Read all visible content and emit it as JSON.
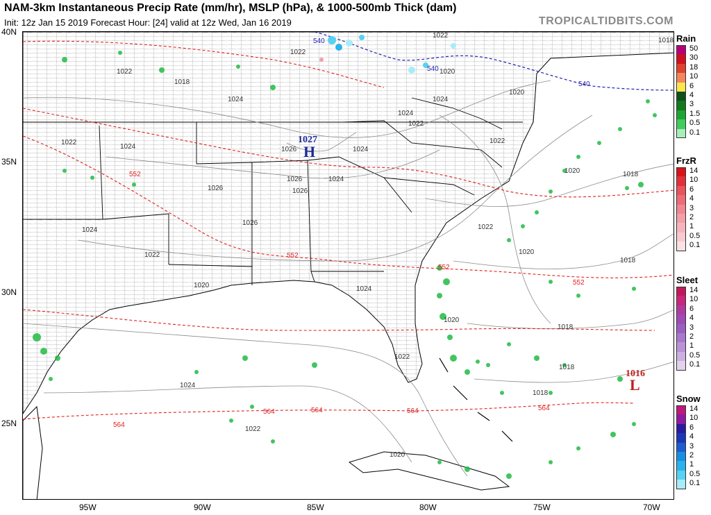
{
  "header": {
    "title": "NAM-3km Instantaneous Precip Rate (mm/hr), MSLP (hPa), & 1000-500mb Thick (dam)",
    "subtitle": "Init: 12z Jan 15 2019   Forecast Hour: [24]   valid at 12z Wed, Jan 16 2019",
    "brand": "TROPICALTIDBITS.COM"
  },
  "axes": {
    "lat_labels": [
      "40N",
      "35N",
      "30N",
      "25N"
    ],
    "lon_labels": [
      "95W",
      "90W",
      "85W",
      "80W",
      "75W",
      "70W"
    ]
  },
  "map": {
    "pressure_centers": [
      {
        "type": "H",
        "value": "1027",
        "color": "#1a2a9a"
      },
      {
        "type": "L",
        "value": "1016",
        "color": "#c0201e"
      }
    ],
    "isobar_labels": [
      "1022",
      "1022",
      "1020",
      "1018",
      "1018",
      "1022",
      "1024",
      "1024",
      "1020",
      "1024",
      "1022",
      "1022",
      "1024",
      "1026",
      "1024",
      "1022",
      "1026",
      "1026",
      "1020",
      "1024",
      "1026",
      "1022",
      "1026",
      "1018",
      "1020",
      "1024",
      "1020",
      "1018",
      "1022",
      "1024",
      "1024",
      "1022",
      "1018",
      "1018",
      "1020",
      "1022",
      "1020",
      "1018"
    ],
    "thickness_labels": [
      "540",
      "540",
      "540",
      "552",
      "552",
      "552",
      "552",
      "564",
      "564",
      "564",
      "564",
      "564"
    ],
    "colors": {
      "thickness": "#e02020",
      "thickness_540": "#2020b0",
      "isobar": "#888888",
      "border": "#000000",
      "county": "#aaaaaa",
      "rain": "#22bb44"
    }
  },
  "legends": [
    {
      "title": "Rain",
      "items": [
        {
          "label": "50",
          "color": "#b5007a"
        },
        {
          "label": "30",
          "color": "#d10f1e"
        },
        {
          "label": "18",
          "color": "#e0412f"
        },
        {
          "label": "10",
          "color": "#f2875c"
        },
        {
          "label": "6",
          "color": "#fbe64e"
        },
        {
          "label": "4",
          "color": "#0e4f1a"
        },
        {
          "label": "3",
          "color": "#14781e"
        },
        {
          "label": "1.5",
          "color": "#1da534"
        },
        {
          "label": "0.5",
          "color": "#41cc5e"
        },
        {
          "label": "0.1",
          "color": "#a8eebb"
        }
      ]
    },
    {
      "title": "FrzR",
      "items": [
        {
          "label": "14",
          "color": "#d8131a"
        },
        {
          "label": "10",
          "color": "#e2303a"
        },
        {
          "label": "6",
          "color": "#e9535a"
        },
        {
          "label": "4",
          "color": "#ee6c77"
        },
        {
          "label": "3",
          "color": "#f18792"
        },
        {
          "label": "2",
          "color": "#f49fa8"
        },
        {
          "label": "1",
          "color": "#f6b5bc"
        },
        {
          "label": "0.5",
          "color": "#f8cad0"
        },
        {
          "label": "0.1",
          "color": "#fbe1e4"
        }
      ]
    },
    {
      "title": "Sleet",
      "items": [
        {
          "label": "14",
          "color": "#c2185b"
        },
        {
          "label": "10",
          "color": "#c7287a"
        },
        {
          "label": "6",
          "color": "#b03aa0"
        },
        {
          "label": "4",
          "color": "#a04ab5"
        },
        {
          "label": "3",
          "color": "#9b5fc2"
        },
        {
          "label": "2",
          "color": "#a978cc"
        },
        {
          "label": "1",
          "color": "#b993d6"
        },
        {
          "label": "0.5",
          "color": "#cbb0e1"
        },
        {
          "label": "0.1",
          "color": "#e2d2ee"
        }
      ]
    },
    {
      "title": "Snow",
      "items": [
        {
          "label": "14",
          "color": "#c0177a"
        },
        {
          "label": "10",
          "color": "#8e1aa2"
        },
        {
          "label": "6",
          "color": "#2a1a9e"
        },
        {
          "label": "4",
          "color": "#1d36b8"
        },
        {
          "label": "3",
          "color": "#1e5dcf"
        },
        {
          "label": "2",
          "color": "#1a8ee0"
        },
        {
          "label": "1",
          "color": "#2ab3ec"
        },
        {
          "label": "0.5",
          "color": "#56d2f2"
        },
        {
          "label": "0.1",
          "color": "#a7ecf8"
        }
      ]
    }
  ]
}
